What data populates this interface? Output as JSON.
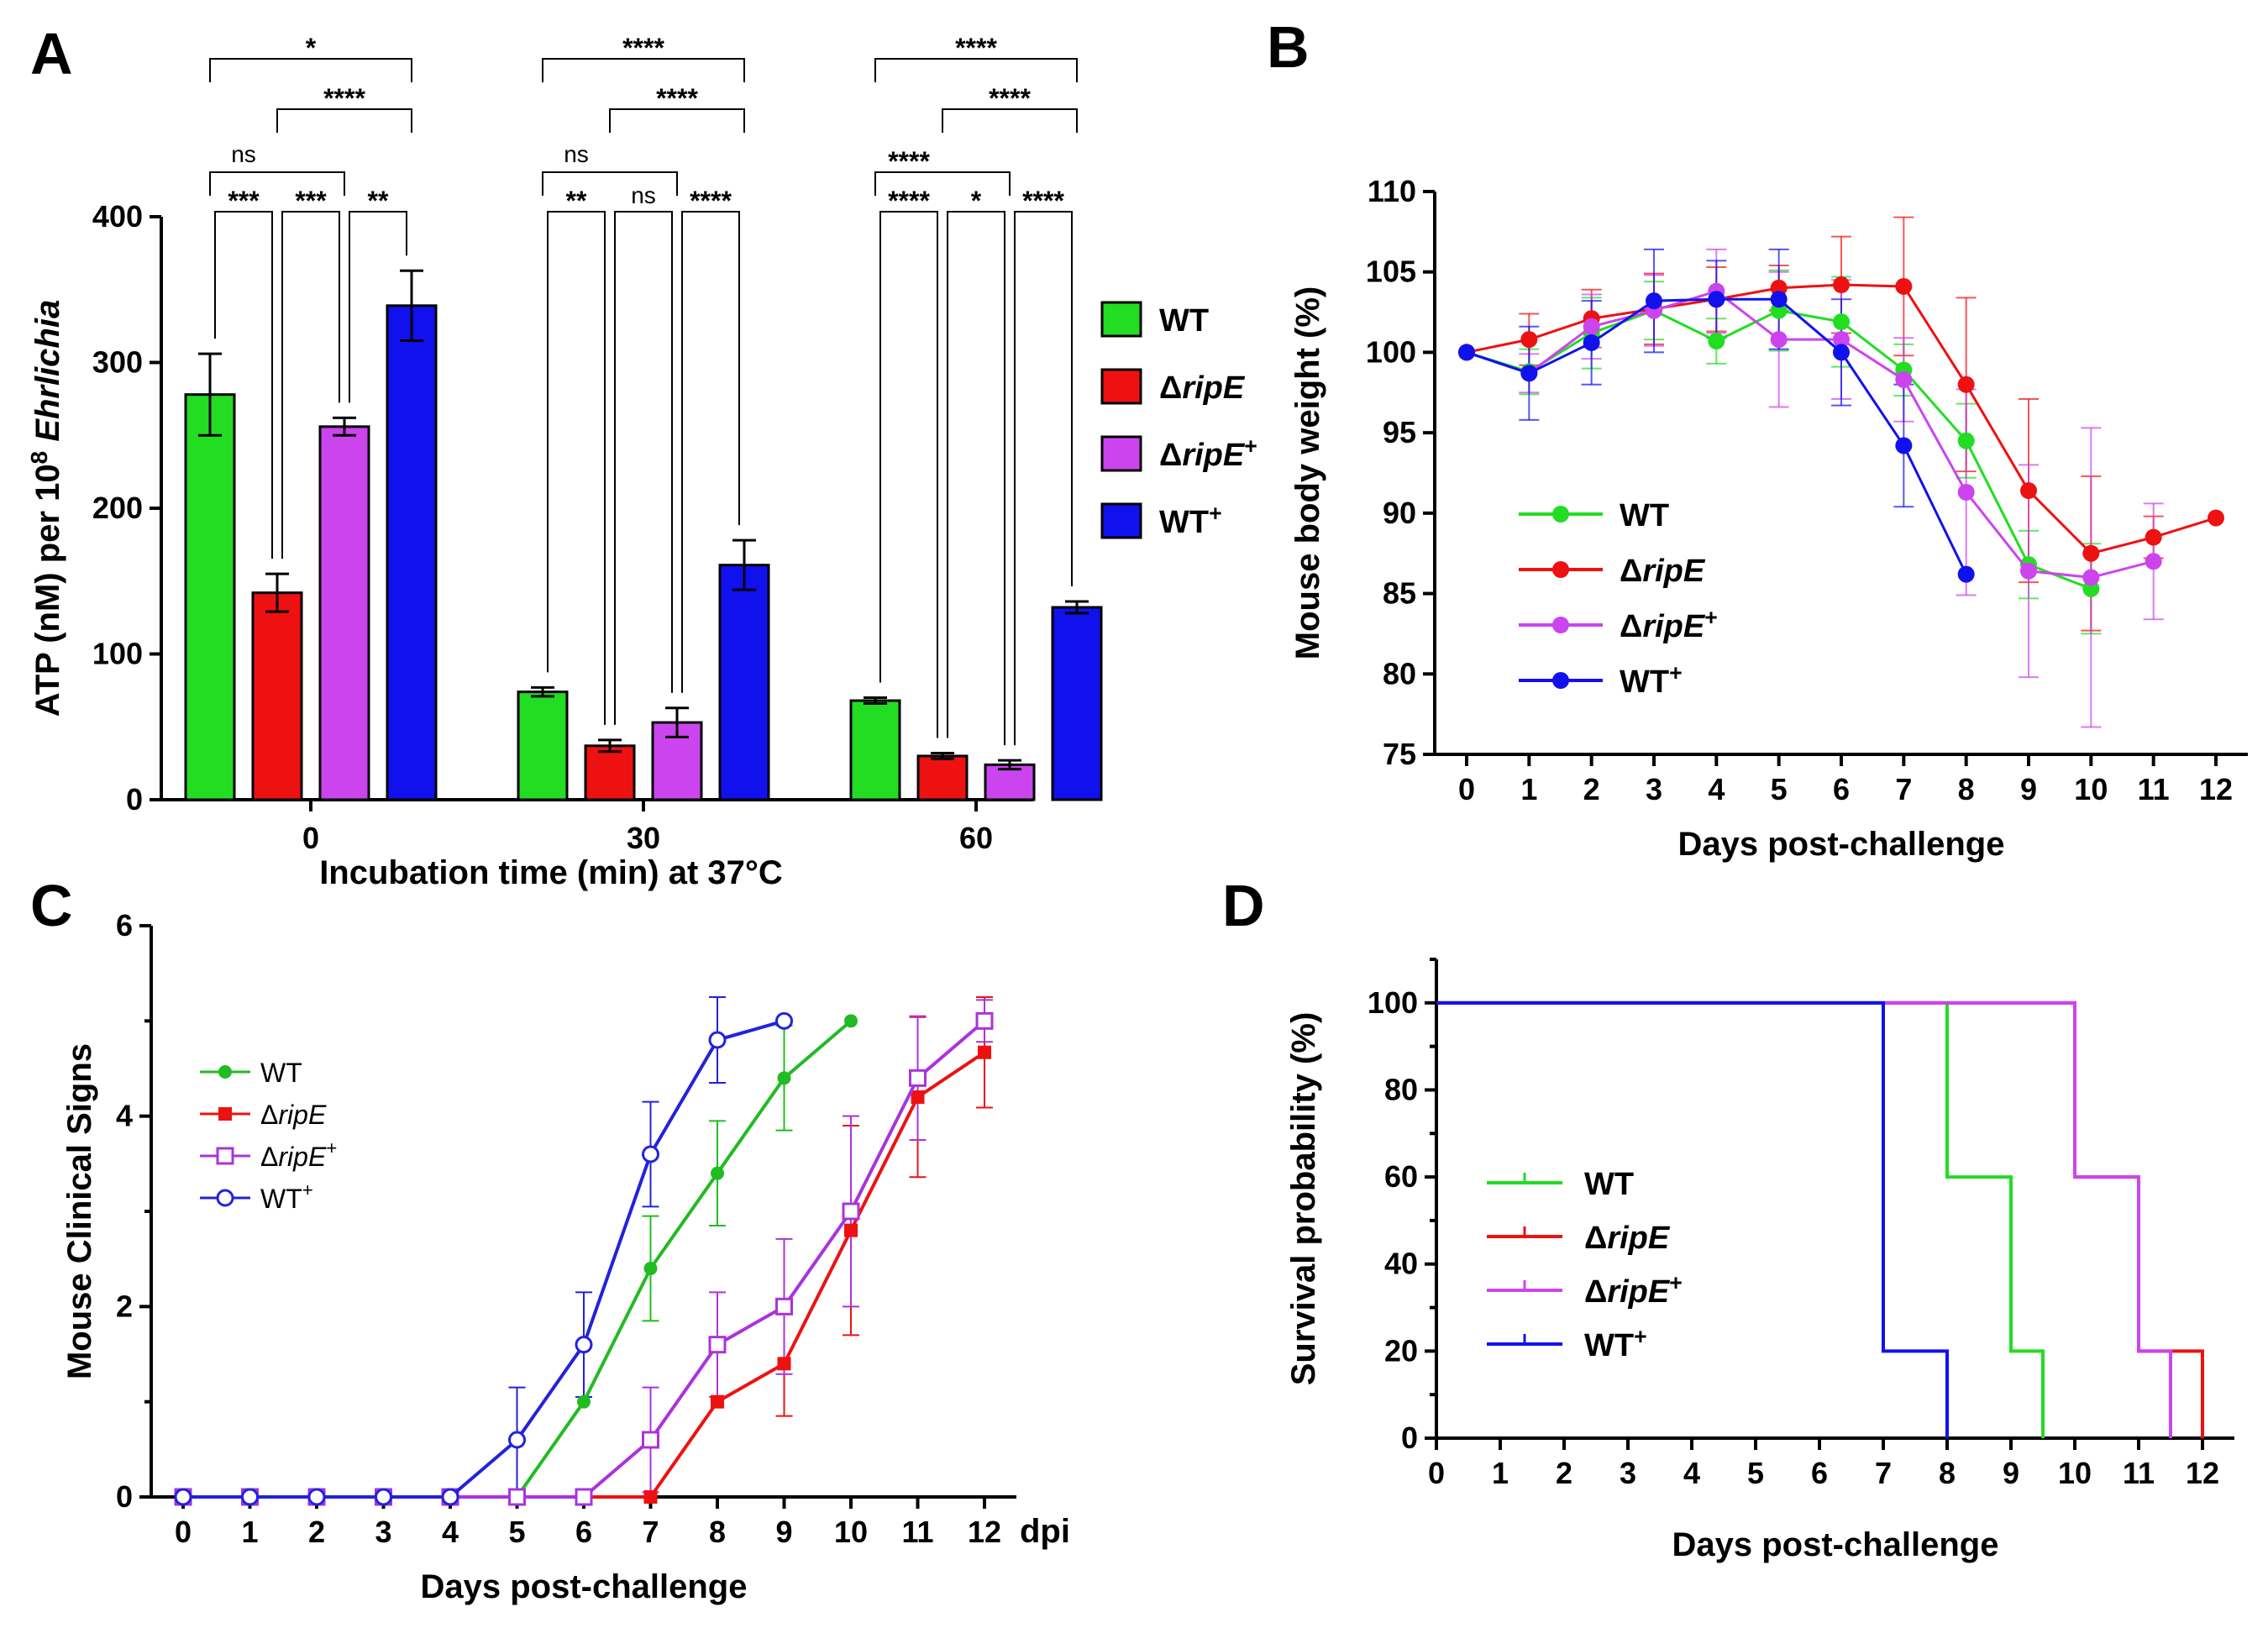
{
  "figure": {
    "panel_labels": [
      "A",
      "B",
      "C",
      "D"
    ]
  },
  "colors": {
    "WT": "#22dd22",
    "dripE": "#ee1111",
    "dripE_plus": "#cc44ee",
    "WT_plus": "#1111ee",
    "C_WT": "#22bb22",
    "C_dripE": "#ee1111",
    "C_dripE_plus": "#aa33dd",
    "C_WT_plus": "#2222dd"
  },
  "chart_data": [
    {
      "panel": "A",
      "type": "bar",
      "ylabel_prefix": "ATP (nM) per 10",
      "ylabel_sup": "8",
      "ylabel_italic": "Ehrlichia",
      "xlabel": "Incubation time (min) at 37°C",
      "ylim": [
        0,
        400
      ],
      "yticks": [
        "0",
        "100",
        "200",
        "300",
        "400"
      ],
      "categories": [
        "0",
        "30",
        "60"
      ],
      "series": [
        {
          "name": "WT",
          "label_base": "WT",
          "label_italic": "",
          "label_sup": "",
          "color_key": "WT",
          "values": [
            278,
            74,
            68
          ],
          "errors": [
            28,
            3,
            2
          ]
        },
        {
          "name": "ΔripE",
          "label_base": "Δ",
          "label_italic": "ripE",
          "label_sup": "",
          "color_key": "dripE",
          "values": [
            142,
            37,
            30
          ],
          "errors": [
            13,
            4,
            2
          ]
        },
        {
          "name": "ΔripE+",
          "label_base": "Δ",
          "label_italic": "ripE",
          "label_sup": "+",
          "color_key": "dripE_plus",
          "values": [
            256,
            53,
            24
          ],
          "errors": [
            6,
            10,
            3
          ]
        },
        {
          "name": "WT+",
          "label_base": "WT",
          "label_italic": "",
          "label_sup": "+",
          "color_key": "WT_plus",
          "values": [
            339,
            161,
            132
          ],
          "errors": [
            24,
            17,
            4
          ]
        }
      ],
      "significance": [
        [
          {
            "text": "*",
            "from": 0,
            "to": 3
          },
          {
            "text": "****",
            "from": 1,
            "to": 3
          },
          {
            "text": "ns",
            "from": 0,
            "to": 2
          },
          {
            "text": "***",
            "from": 0,
            "to": 1
          },
          {
            "text": "***",
            "from": 1,
            "to": 2
          },
          {
            "text": "**",
            "from": 2,
            "to": 3
          }
        ],
        [
          {
            "text": "****",
            "from": 0,
            "to": 3
          },
          {
            "text": "****",
            "from": 1,
            "to": 3
          },
          {
            "text": "ns",
            "from": 0,
            "to": 2
          },
          {
            "text": "**",
            "from": 0,
            "to": 1
          },
          {
            "text": "ns",
            "from": 1,
            "to": 2
          },
          {
            "text": "****",
            "from": 2,
            "to": 3
          }
        ],
        [
          {
            "text": "****",
            "from": 0,
            "to": 3
          },
          {
            "text": "****",
            "from": 1,
            "to": 3
          },
          {
            "text": "****",
            "from": 0,
            "to": 2
          },
          {
            "text": "****",
            "from": 0,
            "to": 1
          },
          {
            "text": "*",
            "from": 1,
            "to": 2
          },
          {
            "text": "****",
            "from": 2,
            "to": 3
          }
        ]
      ]
    },
    {
      "panel": "B",
      "type": "line",
      "ylabel": "Mouse body weight (%)",
      "xlabel": "Days post-challenge",
      "ylim": [
        75,
        110
      ],
      "xlim": [
        0,
        12
      ],
      "yticks": [
        "75",
        "80",
        "85",
        "90",
        "95",
        "100",
        "105",
        "110"
      ],
      "xticks": [
        "0",
        "1",
        "2",
        "3",
        "4",
        "5",
        "6",
        "7",
        "8",
        "9",
        "10",
        "11",
        "12"
      ],
      "series": [
        {
          "name": "WT",
          "label_base": "WT",
          "label_italic": "",
          "label_sup": "",
          "color_key": "WT",
          "x": [
            0,
            1,
            2,
            3,
            4,
            5,
            6,
            7,
            8,
            9,
            10
          ],
          "y": [
            100,
            98.8,
            101.2,
            102.6,
            100.7,
            102.6,
            101.9,
            98.9,
            94.5,
            86.8,
            85.3
          ],
          "err": [
            0,
            1.4,
            2.2,
            1.8,
            1.4,
            2.5,
            2.8,
            1.6,
            2.3,
            2.1,
            2.8
          ]
        },
        {
          "name": "ΔripE",
          "label_base": "Δ",
          "label_italic": "ripE",
          "label_sup": "",
          "color_key": "dripE",
          "x": [
            0,
            1,
            2,
            3,
            4,
            5,
            6,
            7,
            8,
            9,
            10,
            11,
            12
          ],
          "y": [
            100,
            100.8,
            102.1,
            102.7,
            103.3,
            104.0,
            104.2,
            104.1,
            98.0,
            91.4,
            87.5,
            88.5,
            89.7
          ],
          "err": [
            0,
            1.6,
            1.8,
            2.2,
            2.0,
            1.4,
            3.0,
            4.3,
            5.4,
            5.7,
            4.8,
            1.3,
            0
          ]
        },
        {
          "name": "ΔripE+",
          "label_base": "Δ",
          "label_italic": "ripE",
          "label_sup": "+",
          "color_key": "dripE_plus",
          "x": [
            0,
            1,
            2,
            3,
            4,
            5,
            6,
            7,
            8,
            9,
            10,
            11
          ],
          "y": [
            100,
            98.7,
            101.6,
            102.6,
            103.8,
            100.8,
            100.8,
            98.3,
            91.3,
            86.4,
            86.0,
            87.0
          ],
          "err": [
            0,
            1.2,
            2.0,
            2.2,
            2.6,
            4.2,
            3.7,
            2.6,
            6.4,
            6.6,
            9.3,
            3.6
          ]
        },
        {
          "name": "WT+",
          "label_base": "WT",
          "label_italic": "",
          "label_sup": "+",
          "color_key": "WT_plus",
          "x": [
            0,
            1,
            2,
            3,
            4,
            5,
            6,
            7,
            8
          ],
          "y": [
            100,
            98.7,
            100.6,
            103.2,
            103.3,
            103.3,
            100.0,
            94.2,
            86.2
          ],
          "err": [
            0,
            2.9,
            2.6,
            3.2,
            2.4,
            3.1,
            3.3,
            3.8,
            0
          ]
        }
      ]
    },
    {
      "panel": "C",
      "type": "line",
      "ylabel": "Mouse Clinical  Signs",
      "xlabel": "Days post-challenge",
      "x_suffix": "dpi",
      "ylim": [
        0,
        6
      ],
      "xlim": [
        0,
        12
      ],
      "yticks": [
        "0",
        "2",
        "4",
        "6"
      ],
      "xticks": [
        "0",
        "1",
        "2",
        "3",
        "4",
        "5",
        "6",
        "7",
        "8",
        "9",
        "10",
        "11",
        "12"
      ],
      "series": [
        {
          "name": "WT",
          "label_base": "WT",
          "label_italic": "",
          "label_sup": "",
          "color_key": "C_WT",
          "marker": "dot",
          "x": [
            0,
            1,
            2,
            3,
            4,
            5,
            6,
            7,
            8,
            9,
            10
          ],
          "y": [
            0,
            0,
            0,
            0,
            0,
            0,
            1.0,
            2.4,
            3.4,
            4.4,
            5.0
          ],
          "err": [
            0,
            0,
            0,
            0,
            0,
            0,
            0,
            0.55,
            0.55,
            0.55,
            0
          ]
        },
        {
          "name": "ΔripE",
          "label_base": "Δ",
          "label_italic": "ripE",
          "label_sup": "",
          "color_key": "C_dripE",
          "marker": "square",
          "x": [
            0,
            1,
            2,
            3,
            4,
            5,
            6,
            7,
            8,
            9,
            10,
            11,
            12
          ],
          "y": [
            0,
            0,
            0,
            0,
            0,
            0,
            0,
            0,
            1.0,
            1.4,
            2.8,
            4.2,
            4.67
          ],
          "err": [
            0,
            0,
            0,
            0,
            0,
            0,
            0,
            0,
            0,
            0.55,
            1.1,
            0.84,
            0.58
          ]
        },
        {
          "name": "ΔripE+",
          "label_base": "Δ",
          "label_italic": "ripE",
          "label_sup": "+",
          "color_key": "C_dripE_plus",
          "marker": "open-square",
          "x": [
            0,
            1,
            2,
            3,
            4,
            5,
            6,
            7,
            8,
            9,
            10,
            11,
            12
          ],
          "y": [
            0,
            0,
            0,
            0,
            0,
            0,
            0,
            0.6,
            1.6,
            2.0,
            3.0,
            4.4,
            5.0
          ],
          "err": [
            0,
            0,
            0,
            0,
            0,
            0,
            0,
            0.55,
            0.55,
            0.71,
            1.0,
            0.65,
            0.22
          ]
        },
        {
          "name": "WT+",
          "label_base": "WT",
          "label_italic": "",
          "label_sup": "+",
          "color_key": "C_WT_plus",
          "marker": "open-circle",
          "x": [
            0,
            1,
            2,
            3,
            4,
            5,
            6,
            7,
            8,
            9
          ],
          "y": [
            0,
            0,
            0,
            0,
            0,
            0.6,
            1.6,
            3.6,
            4.8,
            5.0
          ],
          "err": [
            0,
            0,
            0,
            0,
            0,
            0.55,
            0.55,
            0.55,
            0.45,
            0
          ]
        }
      ]
    },
    {
      "panel": "D",
      "type": "line",
      "subtype": "step",
      "ylabel": "Survival probability (%)",
      "xlabel": "Days post-challenge",
      "ylim": [
        0,
        110
      ],
      "xlim": [
        0,
        12.5
      ],
      "yticks": [
        "0",
        "20",
        "40",
        "60",
        "80",
        "100"
      ],
      "xticks": [
        "0",
        "1",
        "2",
        "3",
        "4",
        "5",
        "6",
        "7",
        "8",
        "9",
        "10",
        "11",
        "12"
      ],
      "series": [
        {
          "name": "WT",
          "label_base": "WT",
          "label_italic": "",
          "label_sup": "",
          "color_key": "WT",
          "x": [
            0,
            8,
            9,
            9.5
          ],
          "y": [
            100,
            60,
            20,
            0
          ]
        },
        {
          "name": "ΔripE",
          "label_base": "Δ",
          "label_italic": "ripE",
          "label_sup": "",
          "color_key": "dripE",
          "x": [
            0,
            10,
            11,
            12
          ],
          "y": [
            100,
            60,
            20,
            0
          ]
        },
        {
          "name": "ΔripE+",
          "label_base": "Δ",
          "label_italic": "ripE",
          "label_sup": "+",
          "color_key": "dripE_plus",
          "x": [
            0,
            10,
            11,
            11.5
          ],
          "y": [
            100,
            60,
            20,
            0
          ]
        },
        {
          "name": "WT+",
          "label_base": "WT",
          "label_italic": "",
          "label_sup": "+",
          "color_key": "WT_plus",
          "x": [
            0,
            7,
            8
          ],
          "y": [
            100,
            20,
            0
          ]
        }
      ]
    }
  ]
}
